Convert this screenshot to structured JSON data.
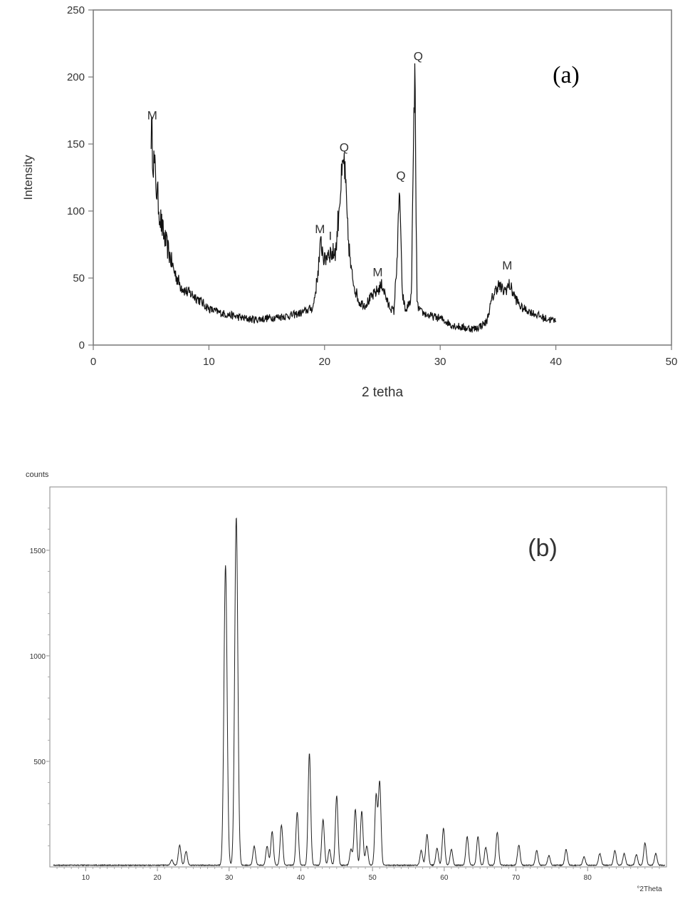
{
  "chart_data": [
    {
      "type": "line",
      "panel_label": "(a)",
      "xlabel": "2 tetha",
      "ylabel": "Intensity",
      "xlim": [
        0,
        50
      ],
      "ylim": [
        0,
        250
      ],
      "x_ticks": [
        "0",
        "10",
        "20",
        "30",
        "40",
        "50"
      ],
      "y_ticks": [
        "0",
        "50",
        "100",
        "150",
        "200",
        "250"
      ],
      "grid": false,
      "series": [
        {
          "x": [
            5.0,
            5.2,
            5.5,
            5.8,
            6.0,
            6.5,
            7.0,
            7.5,
            8.0,
            8.5,
            9.0,
            10.0,
            11.0,
            12.0,
            13.0,
            14.0,
            15.0,
            16.0,
            17.0,
            18.0,
            19.0,
            19.3,
            19.7,
            20.0,
            20.3,
            20.7,
            21.0,
            21.3,
            21.7,
            22.0,
            22.3,
            22.7,
            23.0,
            23.5,
            24.0,
            24.5,
            25.0,
            25.5,
            26.0,
            26.3,
            26.5,
            26.7,
            27.0,
            27.5,
            27.8,
            28.0,
            28.3,
            29.0,
            30.0,
            31.0,
            32.0,
            33.0,
            34.0,
            34.5,
            35.0,
            35.5,
            36.0,
            36.5,
            37.0,
            38.0,
            39.0,
            40.0
          ],
          "y": [
            162,
            140,
            115,
            95,
            85,
            70,
            55,
            45,
            40,
            38,
            35,
            27,
            24,
            22,
            20,
            19,
            20,
            21,
            22,
            24,
            28,
            45,
            77,
            62,
            70,
            68,
            72,
            110,
            138,
            85,
            55,
            40,
            32,
            30,
            35,
            40,
            45,
            30,
            25,
            70,
            117,
            40,
            25,
            35,
            206,
            30,
            25,
            22,
            20,
            15,
            13,
            12,
            17,
            35,
            45,
            40,
            45,
            35,
            28,
            24,
            20,
            18
          ]
        }
      ],
      "annotations": [
        {
          "text": "M",
          "x": 5.1,
          "y": 162
        },
        {
          "text": "M",
          "x": 19.6,
          "y": 77
        },
        {
          "text": "I",
          "x": 20.5,
          "y": 72
        },
        {
          "text": "Q",
          "x": 21.7,
          "y": 138
        },
        {
          "text": "M",
          "x": 24.6,
          "y": 45
        },
        {
          "text": "Q",
          "x": 26.6,
          "y": 117
        },
        {
          "text": "Q",
          "x": 28.1,
          "y": 206
        },
        {
          "text": "M",
          "x": 35.8,
          "y": 50
        }
      ]
    },
    {
      "type": "line",
      "panel_label": "(b)",
      "ylabel": "counts",
      "xlabel": "°2Theta",
      "xlim": [
        5,
        91
      ],
      "ylim": [
        0,
        1800
      ],
      "x_ticks": [
        "10",
        "20",
        "30",
        "40",
        "50",
        "60",
        "70",
        "80"
      ],
      "y_ticks": [
        "500",
        "1000",
        "1500"
      ],
      "grid": false,
      "peaks": [
        {
          "x": 22.0,
          "y": 25
        },
        {
          "x": 23.1,
          "y": 95
        },
        {
          "x": 24.0,
          "y": 65
        },
        {
          "x": 29.5,
          "y": 1420
        },
        {
          "x": 31.0,
          "y": 1650
        },
        {
          "x": 33.5,
          "y": 90
        },
        {
          "x": 35.3,
          "y": 90
        },
        {
          "x": 36.0,
          "y": 160
        },
        {
          "x": 37.3,
          "y": 190
        },
        {
          "x": 39.5,
          "y": 250
        },
        {
          "x": 41.2,
          "y": 530
        },
        {
          "x": 43.1,
          "y": 215
        },
        {
          "x": 44.0,
          "y": 75
        },
        {
          "x": 45.0,
          "y": 330
        },
        {
          "x": 47.0,
          "y": 75
        },
        {
          "x": 47.6,
          "y": 265
        },
        {
          "x": 48.5,
          "y": 255
        },
        {
          "x": 49.2,
          "y": 90
        },
        {
          "x": 50.5,
          "y": 330
        },
        {
          "x": 51.0,
          "y": 395
        },
        {
          "x": 56.8,
          "y": 70
        },
        {
          "x": 57.6,
          "y": 145
        },
        {
          "x": 59.0,
          "y": 80
        },
        {
          "x": 59.9,
          "y": 175
        },
        {
          "x": 61.0,
          "y": 75
        },
        {
          "x": 63.2,
          "y": 135
        },
        {
          "x": 64.7,
          "y": 135
        },
        {
          "x": 65.8,
          "y": 85
        },
        {
          "x": 67.4,
          "y": 155
        },
        {
          "x": 70.4,
          "y": 95
        },
        {
          "x": 72.9,
          "y": 70
        },
        {
          "x": 74.6,
          "y": 45
        },
        {
          "x": 77.0,
          "y": 75
        },
        {
          "x": 79.5,
          "y": 40
        },
        {
          "x": 81.7,
          "y": 55
        },
        {
          "x": 83.8,
          "y": 70
        },
        {
          "x": 85.1,
          "y": 55
        },
        {
          "x": 86.8,
          "y": 50
        },
        {
          "x": 88.0,
          "y": 105
        },
        {
          "x": 89.5,
          "y": 55
        }
      ]
    }
  ]
}
